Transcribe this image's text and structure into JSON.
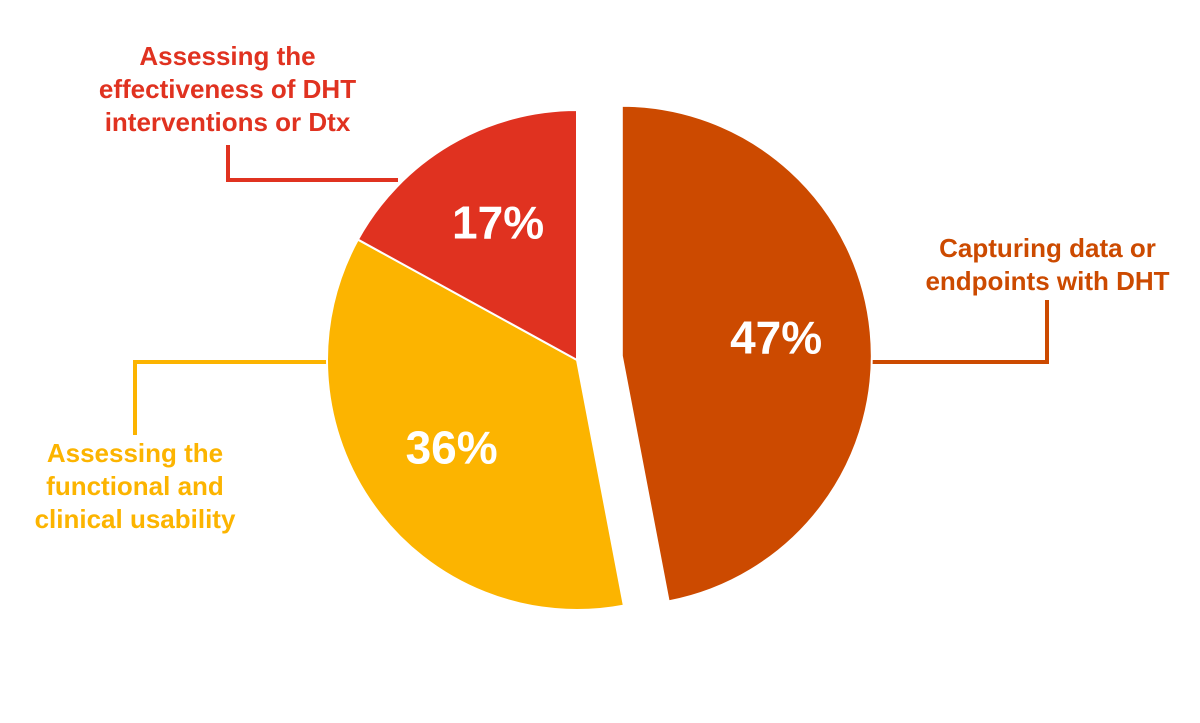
{
  "chart_data": {
    "type": "pie",
    "categories": [
      "Capturing data or endpoints with DHT",
      "Assessing the functional and clinical usability",
      "Assessing the effectiveness of DHT interventions or Dtx"
    ],
    "values": [
      47,
      36,
      17
    ],
    "value_labels": [
      "47%",
      "36%",
      "17%"
    ],
    "colors": [
      "#cc4a00",
      "#fcb400",
      "#e03220"
    ],
    "exploded": [
      true,
      false,
      false
    ]
  }
}
